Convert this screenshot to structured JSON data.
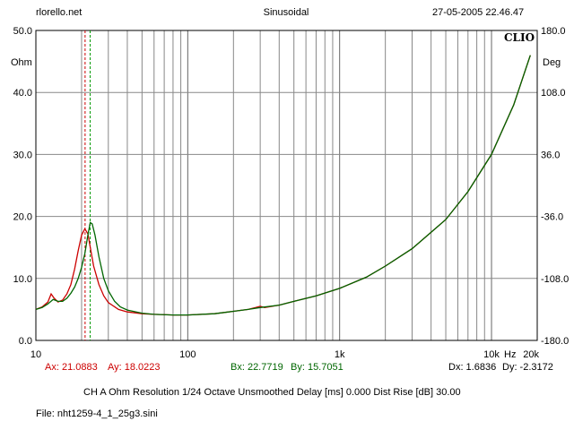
{
  "header": {
    "site": "rlorello.net",
    "mode": "Sinusoidal",
    "datetime": "27-05-2005 22.46.47"
  },
  "brand": "CLIO",
  "chart_data": {
    "type": "line",
    "x_scale": "log",
    "xlim": [
      10,
      20000
    ],
    "ylim_left": [
      0,
      50
    ],
    "ylim_right": [
      -180,
      180
    ],
    "grid": true,
    "ylabel_left": "Ohm",
    "ylabel_right": "Deg",
    "y_ticks_left": [
      "50.0",
      "40.0",
      "30.0",
      "20.0",
      "10.0",
      "0.0"
    ],
    "y_ticks_right": [
      "180.0",
      "108.0",
      "36.0",
      "-36.0",
      "-108.0",
      "-180.0"
    ],
    "x_ticks": [
      {
        "v": 10,
        "label": "10"
      },
      {
        "v": 100,
        "label": "100"
      },
      {
        "v": 1000,
        "label": "1k"
      },
      {
        "v": 10000,
        "label": "10k"
      },
      {
        "v": 20000,
        "label": "20k"
      }
    ],
    "x_unit": "Hz",
    "colors": {
      "red": "#cc0000",
      "green": "#006600",
      "grid": "#888888"
    },
    "series": [
      {
        "color": "#cc0000",
        "points": [
          [
            10,
            5.0
          ],
          [
            11,
            5.4
          ],
          [
            12,
            6.2
          ],
          [
            12.6,
            7.5
          ],
          [
            13.2,
            6.8
          ],
          [
            14,
            6.2
          ],
          [
            15,
            6.5
          ],
          [
            16,
            7.5
          ],
          [
            17,
            9.0
          ],
          [
            18,
            11.5
          ],
          [
            19,
            14.5
          ],
          [
            20,
            17.0
          ],
          [
            21,
            18.0
          ],
          [
            22,
            17.2
          ],
          [
            23,
            14.5
          ],
          [
            24,
            12.0
          ],
          [
            26,
            9.0
          ],
          [
            28,
            7.2
          ],
          [
            30,
            6.1
          ],
          [
            35,
            5.0
          ],
          [
            40,
            4.6
          ],
          [
            50,
            4.3
          ],
          [
            60,
            4.2
          ],
          [
            80,
            4.1
          ],
          [
            100,
            4.1
          ],
          [
            150,
            4.3
          ],
          [
            200,
            4.7
          ],
          [
            250,
            5.0
          ],
          [
            280,
            5.3
          ],
          [
            300,
            5.5
          ],
          [
            320,
            5.3
          ],
          [
            400,
            5.7
          ],
          [
            500,
            6.3
          ],
          [
            700,
            7.2
          ],
          [
            1000,
            8.4
          ],
          [
            1500,
            10.2
          ],
          [
            2000,
            12.0
          ],
          [
            3000,
            14.8
          ],
          [
            5000,
            19.5
          ],
          [
            7000,
            24.0
          ],
          [
            10000,
            30.0
          ],
          [
            14000,
            38.0
          ],
          [
            18000,
            46.0
          ]
        ]
      },
      {
        "color": "#006600",
        "points": [
          [
            10,
            5.0
          ],
          [
            11,
            5.3
          ],
          [
            12,
            5.9
          ],
          [
            13,
            6.6
          ],
          [
            14,
            6.3
          ],
          [
            15,
            6.3
          ],
          [
            16,
            6.8
          ],
          [
            17,
            7.6
          ],
          [
            18,
            8.6
          ],
          [
            19,
            10.0
          ],
          [
            20,
            11.8
          ],
          [
            21,
            14.0
          ],
          [
            22,
            17.0
          ],
          [
            22.8,
            19.0
          ],
          [
            23.5,
            18.8
          ],
          [
            24.5,
            17.0
          ],
          [
            26,
            13.5
          ],
          [
            28,
            10.0
          ],
          [
            30,
            8.0
          ],
          [
            33,
            6.3
          ],
          [
            36,
            5.4
          ],
          [
            40,
            4.9
          ],
          [
            50,
            4.4
          ],
          [
            60,
            4.2
          ],
          [
            80,
            4.1
          ],
          [
            100,
            4.1
          ],
          [
            150,
            4.3
          ],
          [
            200,
            4.7
          ],
          [
            250,
            5.0
          ],
          [
            300,
            5.3
          ],
          [
            400,
            5.7
          ],
          [
            500,
            6.3
          ],
          [
            700,
            7.2
          ],
          [
            1000,
            8.4
          ],
          [
            1500,
            10.2
          ],
          [
            2000,
            12.0
          ],
          [
            3000,
            14.8
          ],
          [
            5000,
            19.5
          ],
          [
            7000,
            24.0
          ],
          [
            10000,
            30.0
          ],
          [
            14000,
            38.0
          ],
          [
            18000,
            46.0
          ]
        ]
      }
    ],
    "markers": [
      {
        "x": 21.0883,
        "color": "#cc0000"
      },
      {
        "x": 22.7719,
        "color": "#009900"
      }
    ]
  },
  "readout": {
    "ax": "Ax: 21.0883",
    "ay": "Ay: 18.0223",
    "bx": "Bx: 22.7719",
    "by": "By: 15.7051",
    "dx": "Dx: 1.6836",
    "dy": "Dy: -2.3172"
  },
  "settings": "CH A   Ohm   Resolution 1/24 Octave   Unsmoothed   Delay [ms] 0.000   Dist Rise [dB] 30.00",
  "file": "File: nht1259-4_1_25g3.sini"
}
